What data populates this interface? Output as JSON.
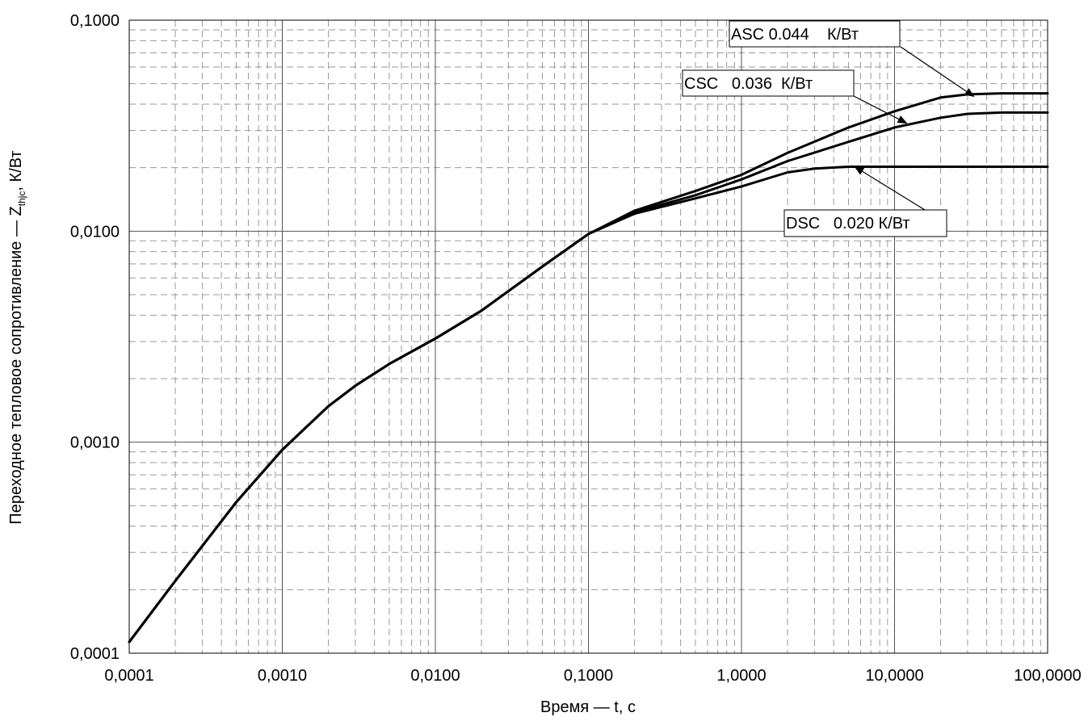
{
  "chart_data": {
    "type": "line",
    "x_scale": "log",
    "y_scale": "log",
    "xlim": [
      0.0001,
      100
    ],
    "ylim": [
      0.0001,
      0.1
    ],
    "xlabel": "Время — t, с",
    "ylabel_main": "Переходное тепловое сопротивление — Z",
    "ylabel_sub": "thjc",
    "ylabel_tail": ", К/Вт",
    "x_ticks": [
      {
        "value": 0.0001,
        "label": "0,0001"
      },
      {
        "value": 0.001,
        "label": "0,0010"
      },
      {
        "value": 0.01,
        "label": "0,0100"
      },
      {
        "value": 0.1,
        "label": "0,1000"
      },
      {
        "value": 1,
        "label": "1,0000"
      },
      {
        "value": 10,
        "label": "10,0000"
      },
      {
        "value": 100,
        "label": "100,0000"
      }
    ],
    "y_ticks": [
      {
        "value": 0.0001,
        "label": "0,0001"
      },
      {
        "value": 0.001,
        "label": "0,0010"
      },
      {
        "value": 0.01,
        "label": "0,0100"
      },
      {
        "value": 0.1,
        "label": "0,1000"
      }
    ],
    "grid": "major solid, minor dashed",
    "series": [
      {
        "name": "ASC",
        "x": [
          0.0001,
          0.0002,
          0.0005,
          0.001,
          0.002,
          0.003,
          0.005,
          0.01,
          0.02,
          0.05,
          0.1,
          0.2,
          0.5,
          1,
          2,
          5,
          10,
          20,
          30,
          50,
          100
        ],
        "y": [
          0.000113,
          0.00022,
          0.00052,
          0.00092,
          0.00148,
          0.00185,
          0.00235,
          0.0031,
          0.0042,
          0.0068,
          0.0097,
          0.0125,
          0.0155,
          0.0185,
          0.0235,
          0.031,
          0.037,
          0.043,
          0.0445,
          0.045,
          0.045
        ]
      },
      {
        "name": "CSC",
        "x": [
          0.0001,
          0.0002,
          0.0005,
          0.001,
          0.002,
          0.003,
          0.005,
          0.01,
          0.02,
          0.05,
          0.1,
          0.2,
          0.5,
          1,
          2,
          5,
          10,
          20,
          30,
          50,
          100
        ],
        "y": [
          0.000113,
          0.00022,
          0.00052,
          0.00092,
          0.00148,
          0.00185,
          0.00235,
          0.0031,
          0.0042,
          0.0068,
          0.0097,
          0.0123,
          0.0148,
          0.0176,
          0.0215,
          0.0265,
          0.031,
          0.0345,
          0.036,
          0.0365,
          0.0365
        ]
      },
      {
        "name": "DSC",
        "x": [
          0.0001,
          0.0002,
          0.0005,
          0.001,
          0.002,
          0.003,
          0.005,
          0.01,
          0.02,
          0.05,
          0.1,
          0.2,
          0.5,
          1,
          2,
          3,
          5,
          10,
          20,
          50,
          100
        ],
        "y": [
          0.000113,
          0.00022,
          0.00052,
          0.00092,
          0.00148,
          0.00185,
          0.00235,
          0.0031,
          0.0042,
          0.0068,
          0.0097,
          0.0121,
          0.0143,
          0.0163,
          0.019,
          0.0198,
          0.0202,
          0.0202,
          0.0202,
          0.0202,
          0.0202
        ]
      }
    ],
    "annotations": [
      {
        "series": "ASC",
        "text": "ASC 0.044    К/Вт",
        "arrow_to": {
          "x": 33,
          "y": 0.0435
        }
      },
      {
        "series": "CSC",
        "text": "CSC   0.036  К/Вт",
        "arrow_to": {
          "x": 12,
          "y": 0.0325
        }
      },
      {
        "series": "DSC",
        "text": "DSC   0.020 К/Вт",
        "arrow_to": {
          "x": 5.5,
          "y": 0.0202
        }
      }
    ]
  }
}
